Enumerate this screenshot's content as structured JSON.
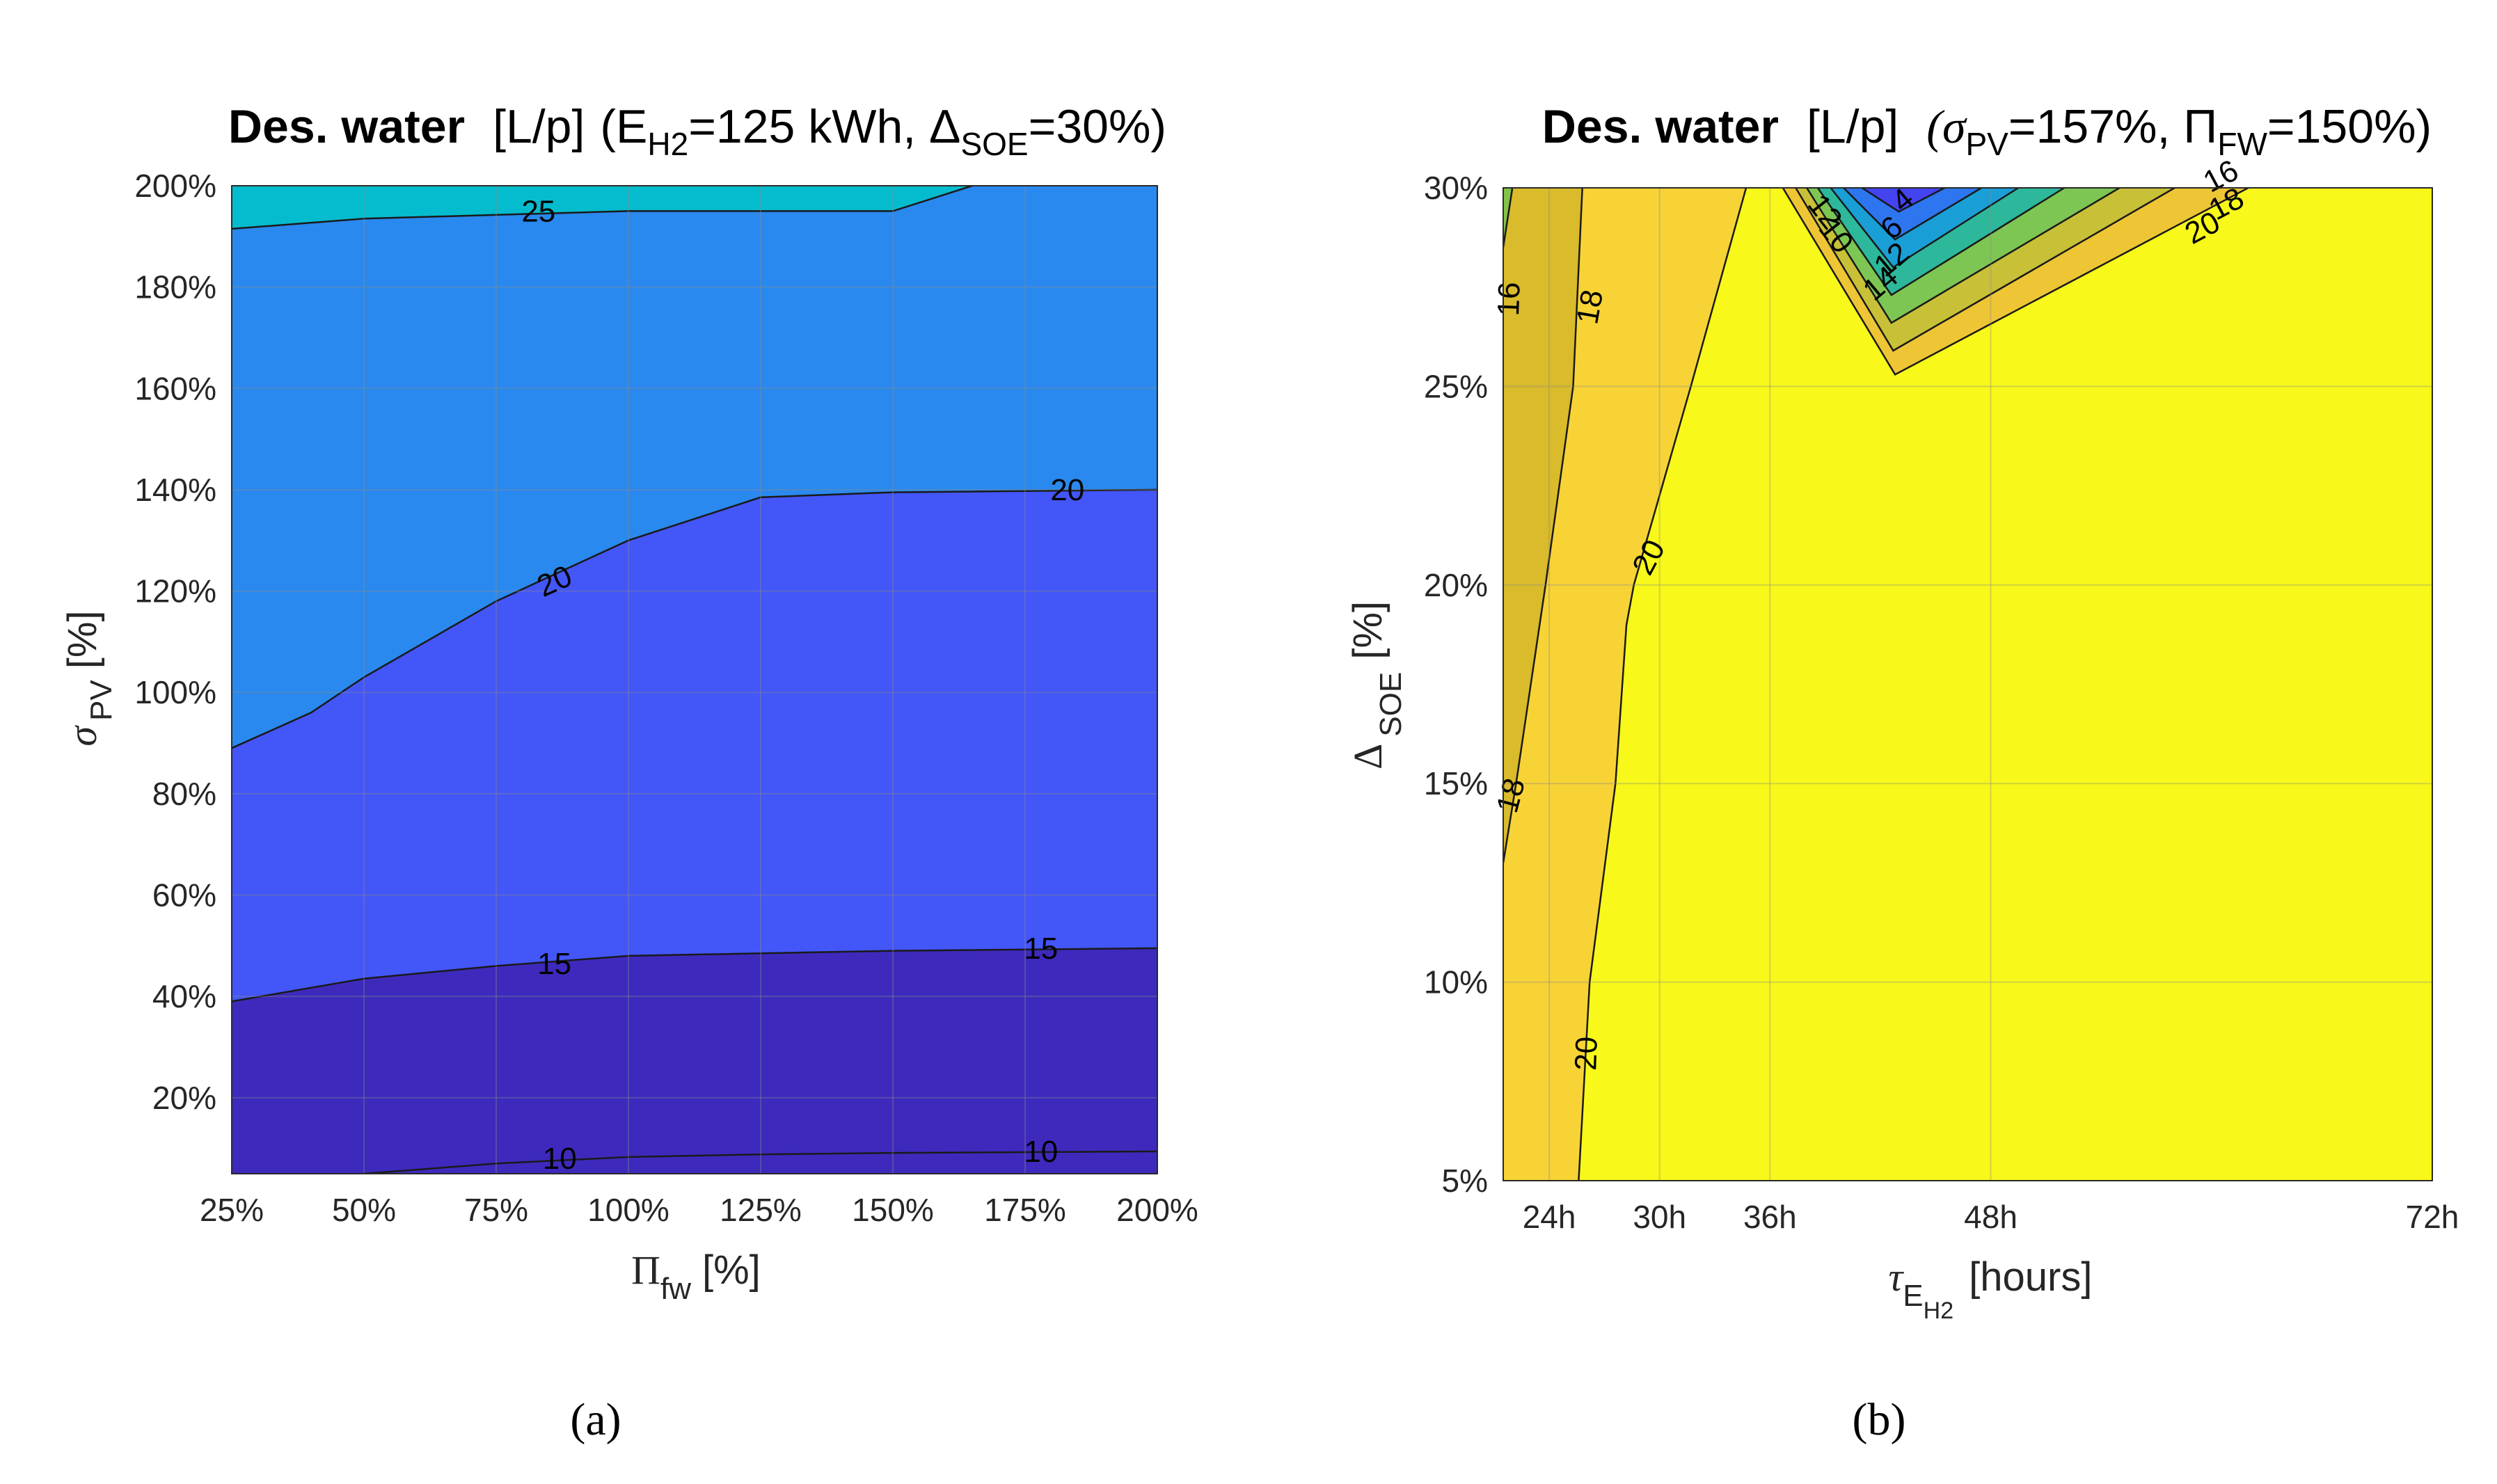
{
  "figure": {
    "caption_a": "(a)",
    "caption_b": "(b)"
  },
  "chart_data": [
    {
      "type": "heatmap",
      "subtype": "filled-contour",
      "title": {
        "bold": "Des. water",
        "unit": "[L/p]",
        "params": "(E",
        "params_sub": "H2",
        "params_mid": "=125 kWh, Δ",
        "params_sub2": "SOE",
        "params_end": "=30%)"
      },
      "xlabel": {
        "main": "Π",
        "sub": "fw",
        "unit": "[%]"
      },
      "ylabel": {
        "main": "σ",
        "sub": "PV",
        "unit": "[%]"
      },
      "xlim": [
        25,
        200
      ],
      "ylim": [
        5,
        200
      ],
      "x_ticks": [
        25,
        50,
        75,
        100,
        125,
        150,
        175,
        200
      ],
      "x_tick_labels": [
        "25%",
        "50%",
        "75%",
        "100%",
        "125%",
        "150%",
        "175%",
        "200%"
      ],
      "y_ticks": [
        20,
        40,
        60,
        80,
        100,
        120,
        140,
        160,
        180,
        200
      ],
      "y_tick_labels": [
        "20%",
        "40%",
        "60%",
        "80%",
        "100%",
        "120%",
        "140%",
        "160%",
        "180%",
        "200%"
      ],
      "background_color": "#2a89ee",
      "bands": [
        {
          "color": "#4356f7",
          "upper": [
            [
              25,
              89
            ],
            [
              40,
              96
            ],
            [
              50,
              103
            ],
            [
              75,
              118
            ],
            [
              100,
              130
            ],
            [
              125,
              138.5
            ],
            [
              150,
              139.5
            ],
            [
              200,
              140
            ]
          ]
        },
        {
          "color": "#3d2abc",
          "upper": [
            [
              25,
              39
            ],
            [
              50,
              43.5
            ],
            [
              75,
              46
            ],
            [
              100,
              48
            ],
            [
              125,
              48.5
            ],
            [
              150,
              49
            ],
            [
              200,
              49.5
            ]
          ]
        },
        {
          "color": "#05bcce",
          "lower": [
            [
              25,
              191.5
            ],
            [
              50,
              193.5
            ],
            [
              100,
              195
            ],
            [
              150,
              195
            ],
            [
              165,
              200
            ]
          ]
        }
      ],
      "contours": [
        {
          "level": 25,
          "points": [
            [
              25,
              191.5
            ],
            [
              50,
              193.5
            ],
            [
              100,
              195
            ],
            [
              150,
              195
            ],
            [
              165,
              200
            ]
          ]
        },
        {
          "level": 20,
          "points": [
            [
              25,
              89
            ],
            [
              40,
              96
            ],
            [
              50,
              103
            ],
            [
              75,
              118
            ],
            [
              100,
              130
            ],
            [
              125,
              138.5
            ],
            [
              150,
              139.5
            ],
            [
              200,
              140
            ]
          ]
        },
        {
          "level": 15,
          "points": [
            [
              25,
              39
            ],
            [
              50,
              43.5
            ],
            [
              75,
              46
            ],
            [
              100,
              48
            ],
            [
              125,
              48.5
            ],
            [
              150,
              49
            ],
            [
              200,
              49.5
            ]
          ]
        },
        {
          "level": 10,
          "points": [
            [
              50,
              5
            ],
            [
              75,
              7
            ],
            [
              100,
              8.3
            ],
            [
              125,
              8.8
            ],
            [
              150,
              9.1
            ],
            [
              200,
              9.4
            ]
          ]
        }
      ],
      "contour_labels": [
        {
          "text": "25",
          "x": 83,
          "y": 195,
          "angle": 0
        },
        {
          "text": "20",
          "x": 86,
          "y": 122,
          "angle": -24
        },
        {
          "text": "20",
          "x": 183,
          "y": 140,
          "angle": 0
        },
        {
          "text": "15",
          "x": 86,
          "y": 46.5,
          "angle": 0
        },
        {
          "text": "15",
          "x": 178,
          "y": 49.5,
          "angle": 0
        },
        {
          "text": "10",
          "x": 87,
          "y": 8,
          "angle": 0
        },
        {
          "text": "10",
          "x": 178,
          "y": 9.4,
          "angle": 0
        }
      ]
    },
    {
      "type": "heatmap",
      "subtype": "filled-contour",
      "title": {
        "bold": "Des. water",
        "unit": "[L/p]",
        "params": "(σ",
        "params_sub": "PV",
        "params_mid": "=157%, Π",
        "params_sub2": "FW",
        "params_end": "=150%)"
      },
      "xlabel": {
        "main": "τ",
        "sub": "E",
        "sub2": "H2",
        "unit": "[hours]"
      },
      "ylabel": {
        "main": "Δ",
        "sub": "SOE",
        "unit": "[%]"
      },
      "xlim": [
        21.5,
        72
      ],
      "ylim": [
        5,
        30
      ],
      "x_ticks": [
        24,
        30,
        36,
        48,
        72
      ],
      "x_tick_labels": [
        "24h",
        "30h",
        "36h",
        "48h",
        "72h"
      ],
      "y_ticks": [
        5,
        10,
        15,
        20,
        25,
        30
      ],
      "y_tick_labels": [
        "5%",
        "10%",
        "15%",
        "20%",
        "25%",
        "30%"
      ],
      "background_color": "#f8f81a",
      "bands": [
        {
          "color": "#f8d336",
          "poly": [
            [
              21.5,
              5
            ],
            [
              25.6,
              5
            ],
            [
              26.2,
              10
            ],
            [
              27.6,
              15
            ],
            [
              28.2,
              19
            ],
            [
              28.6,
              20
            ],
            [
              31.7,
              25
            ],
            [
              34.7,
              30
            ],
            [
              21.5,
              30
            ]
          ]
        },
        {
          "color": "#d9bb2b",
          "poly": [
            [
              21.5,
              13
            ],
            [
              22.2,
              15
            ],
            [
              23.8,
              20
            ],
            [
              25.3,
              25
            ],
            [
              25.8,
              30
            ],
            [
              21.5,
              30
            ]
          ]
        },
        {
          "color": "#84c346",
          "poly": [
            [
              21.5,
              28.5
            ],
            [
              22.0,
              30
            ],
            [
              21.5,
              30
            ]
          ]
        },
        {
          "color": "#eec635",
          "poly": [
            [
              36.7,
              30
            ],
            [
              42.8,
              25.3
            ],
            [
              62,
              30
            ]
          ]
        },
        {
          "color": "#c8c037",
          "poly": [
            [
              37.4,
              30
            ],
            [
              42.7,
              25.9
            ],
            [
              58,
              30
            ]
          ]
        },
        {
          "color": "#7dc653",
          "poly": [
            [
              38.0,
              30
            ],
            [
              42.6,
              26.6
            ],
            [
              55,
              30
            ]
          ]
        },
        {
          "color": "#2db89b",
          "poly": [
            [
              38.6,
              30
            ],
            [
              42.6,
              27.3
            ],
            [
              52,
              30
            ]
          ]
        },
        {
          "color": "#1a9ed6",
          "poly": [
            [
              39.3,
              30
            ],
            [
              42.7,
              28.0
            ],
            [
              49.5,
              30
            ]
          ]
        },
        {
          "color": "#2d76f0",
          "poly": [
            [
              40.0,
              30
            ],
            [
              42.8,
              28.7
            ],
            [
              47.5,
              30
            ]
          ]
        },
        {
          "color": "#4343f0",
          "poly": [
            [
              41.0,
              30
            ],
            [
              43.0,
              29.4
            ],
            [
              45.5,
              30
            ]
          ]
        }
      ],
      "contours": [
        {
          "level": 20,
          "points": [
            [
              25.6,
              5
            ],
            [
              26.2,
              10
            ],
            [
              27.6,
              15
            ],
            [
              28.2,
              19
            ],
            [
              28.6,
              20
            ],
            [
              31.7,
              25
            ],
            [
              34.7,
              30
            ]
          ]
        },
        {
          "level": 18,
          "points": [
            [
              21.5,
              13
            ],
            [
              22.2,
              15
            ],
            [
              23.8,
              20
            ],
            [
              25.3,
              25
            ],
            [
              25.8,
              30
            ]
          ]
        },
        {
          "level": 16,
          "points": [
            [
              21.5,
              28.5
            ],
            [
              22.0,
              30
            ]
          ]
        },
        {
          "level": 20,
          "points": [
            [
              36.7,
              30
            ],
            [
              42.8,
              25.3
            ],
            [
              62,
              30
            ]
          ]
        },
        {
          "level": 18,
          "points": [
            [
              37.4,
              30
            ],
            [
              42.7,
              25.9
            ],
            [
              58,
              30
            ]
          ]
        },
        {
          "level": 16,
          "points": [
            [
              38.0,
              30
            ],
            [
              42.6,
              26.6
            ],
            [
              55,
              30
            ]
          ]
        },
        {
          "level": 12,
          "points": [
            [
              38.6,
              30
            ],
            [
              42.6,
              27.3
            ],
            [
              52,
              30
            ]
          ]
        },
        {
          "level": 10,
          "points": [
            [
              39.3,
              30
            ],
            [
              42.7,
              28.0
            ],
            [
              49.5,
              30
            ]
          ]
        },
        {
          "level": 6,
          "points": [
            [
              40.0,
              30
            ],
            [
              42.8,
              28.7
            ],
            [
              47.5,
              30
            ]
          ]
        },
        {
          "level": 4,
          "points": [
            [
              41.0,
              30
            ],
            [
              43.0,
              29.4
            ],
            [
              45.5,
              30
            ]
          ]
        }
      ],
      "contour_labels": [
        {
          "text": "16",
          "x": 21.8,
          "y": 27.2,
          "angle": -88
        },
        {
          "text": "18",
          "x": 26.2,
          "y": 27.0,
          "angle": -80
        },
        {
          "text": "20",
          "x": 29.4,
          "y": 20.7,
          "angle": -62
        },
        {
          "text": "18",
          "x": 21.9,
          "y": 14.7,
          "angle": -75
        },
        {
          "text": "20",
          "x": 26.0,
          "y": 8.2,
          "angle": -88
        },
        {
          "text": "20",
          "x": 59.5,
          "y": 29.0,
          "angle": -28
        },
        {
          "text": "18",
          "x": 60.8,
          "y": 29.6,
          "angle": -28
        },
        {
          "text": "16",
          "x": 60.5,
          "y": 30.3,
          "angle": -28
        },
        {
          "text": "12",
          "x": 39.0,
          "y": 29.4,
          "angle": 52
        },
        {
          "text": "10",
          "x": 39.6,
          "y": 28.8,
          "angle": 52
        },
        {
          "text": "14",
          "x": 42.0,
          "y": 27.6,
          "angle": -40
        },
        {
          "text": "12",
          "x": 42.6,
          "y": 28.2,
          "angle": -40
        },
        {
          "text": "6",
          "x": 42.6,
          "y": 29.0,
          "angle": -40
        },
        {
          "text": "4",
          "x": 43.2,
          "y": 29.7,
          "angle": -40
        }
      ]
    }
  ]
}
